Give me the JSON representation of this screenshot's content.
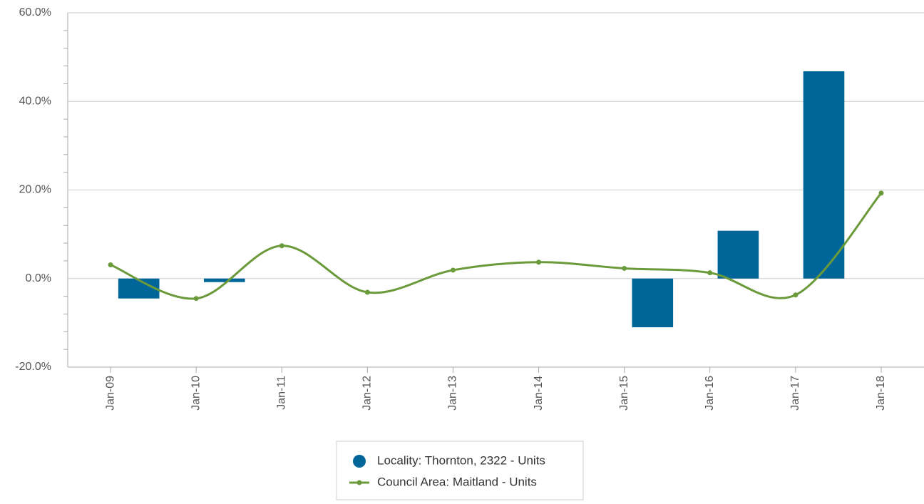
{
  "chart_data": {
    "type": "bar-line",
    "categories": [
      "Jan-09",
      "Jan-10",
      "Jan-11",
      "Jan-12",
      "Jan-13",
      "Jan-14",
      "Jan-15",
      "Jan-16",
      "Jan-17",
      "Jan-18"
    ],
    "series": [
      {
        "name": "Locality: Thornton, 2322 - Units",
        "type": "bar",
        "color": "#006699",
        "values": [
          -4.5,
          -0.8,
          null,
          null,
          null,
          null,
          -11.0,
          10.8,
          46.8,
          null
        ]
      },
      {
        "name": "Council Area: Maitland - Units",
        "type": "line",
        "color": "#6a9a3a",
        "values": [
          3.1,
          -4.5,
          7.4,
          -3.1,
          1.9,
          3.7,
          2.3,
          1.3,
          -3.7,
          19.3
        ]
      }
    ],
    "ylim": [
      -20,
      60
    ],
    "yticks": [
      {
        "value": -20,
        "label": "-20.0%"
      },
      {
        "value": 0,
        "label": "0.0%"
      },
      {
        "value": 20,
        "label": "20.0%"
      },
      {
        "value": 40,
        "label": "40.0%"
      },
      {
        "value": 60,
        "label": "60.0%"
      }
    ],
    "grid": true
  }
}
